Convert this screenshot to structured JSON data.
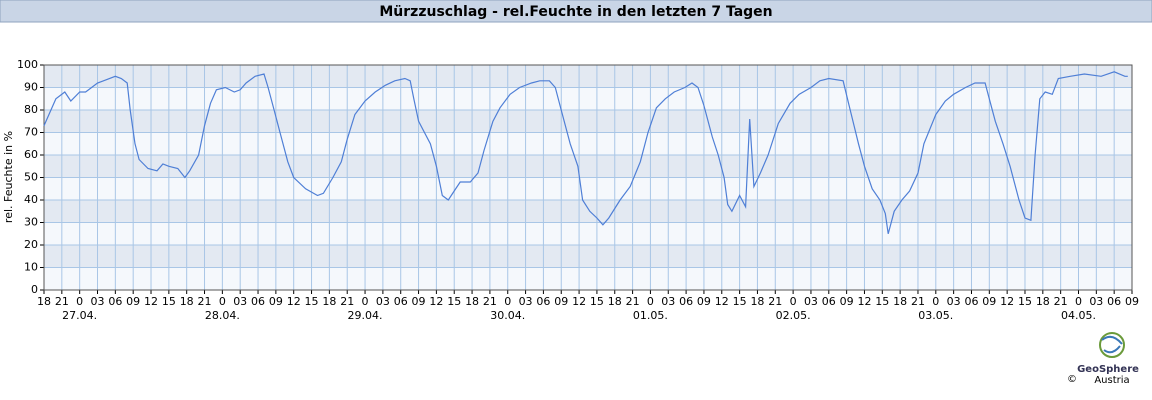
{
  "chart_data": {
    "type": "line",
    "title": "Mürzzuschlag - rel.Feuchte in den letzten 7 Tagen",
    "y_label": "rel. Feuchte in %",
    "logo": {
      "name": "GeoSphere",
      "sub": "Austria",
      "copyright": "©"
    },
    "xlim": [
      0,
      183
    ],
    "ylim": [
      0,
      100
    ],
    "yticks": [
      0,
      10,
      20,
      30,
      40,
      50,
      60,
      70,
      80,
      90,
      100
    ],
    "grid": true,
    "band_colors": [
      "#e3e9f2",
      "#f5f8fc"
    ],
    "xticks": [
      {
        "value": 0,
        "label": "18"
      },
      {
        "value": 3,
        "label": "21"
      },
      {
        "value": 6,
        "label": "0"
      },
      {
        "value": 9,
        "label": "03"
      },
      {
        "value": 12,
        "label": "06"
      },
      {
        "value": 15,
        "label": "09"
      },
      {
        "value": 18,
        "label": "12"
      },
      {
        "value": 21,
        "label": "15"
      },
      {
        "value": 24,
        "label": "18"
      },
      {
        "value": 27,
        "label": "21"
      },
      {
        "value": 30,
        "label": "0"
      },
      {
        "value": 33,
        "label": "03"
      },
      {
        "value": 36,
        "label": "06"
      },
      {
        "value": 39,
        "label": "09"
      },
      {
        "value": 42,
        "label": "12"
      },
      {
        "value": 45,
        "label": "15"
      },
      {
        "value": 48,
        "label": "18"
      },
      {
        "value": 51,
        "label": "21"
      },
      {
        "value": 54,
        "label": "0"
      },
      {
        "value": 57,
        "label": "03"
      },
      {
        "value": 60,
        "label": "06"
      },
      {
        "value": 63,
        "label": "09"
      },
      {
        "value": 66,
        "label": "12"
      },
      {
        "value": 69,
        "label": "15"
      },
      {
        "value": 72,
        "label": "18"
      },
      {
        "value": 75,
        "label": "21"
      },
      {
        "value": 78,
        "label": "0"
      },
      {
        "value": 81,
        "label": "03"
      },
      {
        "value": 84,
        "label": "06"
      },
      {
        "value": 87,
        "label": "09"
      },
      {
        "value": 90,
        "label": "12"
      },
      {
        "value": 93,
        "label": "15"
      },
      {
        "value": 96,
        "label": "18"
      },
      {
        "value": 99,
        "label": "21"
      },
      {
        "value": 102,
        "label": "0"
      },
      {
        "value": 105,
        "label": "03"
      },
      {
        "value": 108,
        "label": "06"
      },
      {
        "value": 111,
        "label": "09"
      },
      {
        "value": 114,
        "label": "12"
      },
      {
        "value": 117,
        "label": "15"
      },
      {
        "value": 120,
        "label": "18"
      },
      {
        "value": 123,
        "label": "21"
      },
      {
        "value": 126,
        "label": "0"
      },
      {
        "value": 129,
        "label": "03"
      },
      {
        "value": 132,
        "label": "06"
      },
      {
        "value": 135,
        "label": "09"
      },
      {
        "value": 138,
        "label": "12"
      },
      {
        "value": 141,
        "label": "15"
      },
      {
        "value": 144,
        "label": "18"
      },
      {
        "value": 147,
        "label": "21"
      },
      {
        "value": 150,
        "label": "0"
      },
      {
        "value": 153,
        "label": "03"
      },
      {
        "value": 156,
        "label": "06"
      },
      {
        "value": 159,
        "label": "09"
      },
      {
        "value": 162,
        "label": "12"
      },
      {
        "value": 165,
        "label": "15"
      },
      {
        "value": 168,
        "label": "18"
      },
      {
        "value": 171,
        "label": "21"
      },
      {
        "value": 174,
        "label": "0"
      },
      {
        "value": 177,
        "label": "03"
      },
      {
        "value": 180,
        "label": "06"
      },
      {
        "value": 183,
        "label": "09"
      }
    ],
    "date_labels": [
      {
        "value": 6,
        "label": "27.04."
      },
      {
        "value": 30,
        "label": "28.04."
      },
      {
        "value": 54,
        "label": "29.04."
      },
      {
        "value": 78,
        "label": "30.04."
      },
      {
        "value": 102,
        "label": "01.05."
      },
      {
        "value": 126,
        "label": "02.05."
      },
      {
        "value": 150,
        "label": "03.05."
      },
      {
        "value": 174,
        "label": "04.05."
      }
    ],
    "x": [
      0,
      2,
      3.5,
      4.5,
      6,
      7,
      8,
      9,
      10,
      12,
      13,
      14,
      14.5,
      15.3,
      16,
      17.5,
      19,
      20,
      21,
      22.5,
      23.7,
      24.5,
      26,
      27,
      28,
      29,
      30.5,
      32,
      33,
      34,
      35.5,
      37,
      37.7,
      38.7,
      39.7,
      41,
      42,
      44,
      46,
      47,
      48.6,
      50,
      51,
      52.3,
      54,
      55.7,
      57.4,
      59,
      60.7,
      61.6,
      62.2,
      63,
      65,
      66,
      67,
      68,
      69,
      70,
      71.7,
      73,
      74,
      75.5,
      76.7,
      78.4,
      80,
      82,
      83.4,
      85,
      86,
      87,
      88.5,
      89.8,
      90.6,
      91.8,
      93,
      94,
      95,
      96.9,
      98.6,
      100.3,
      101.6,
      103,
      104.5,
      106,
      107.8,
      109,
      110,
      111,
      112.4,
      113.4,
      114.4,
      115,
      115.7,
      117,
      118,
      118.7,
      119.4,
      120.5,
      121.8,
      123.5,
      125.5,
      127,
      129,
      130.5,
      132,
      134.4,
      135.6,
      137,
      138,
      139.3,
      140.6,
      141.5,
      142,
      143,
      144.3,
      145.6,
      147,
      148,
      150,
      151.6,
      153,
      155,
      156.6,
      158.3,
      159,
      160,
      161.3,
      162.5,
      164,
      165,
      166,
      166.7,
      167.5,
      168.4,
      169.6,
      170.6,
      172.6,
      175,
      177.8,
      180,
      181.8,
      182.3
    ],
    "series": [
      {
        "name": "rel. Feuchte",
        "color": "#4f7fd6",
        "values": [
          73,
          85,
          88,
          84,
          88,
          88,
          90,
          92,
          93,
          95,
          94,
          92,
          80,
          65,
          58,
          54,
          53,
          56,
          55,
          54,
          50,
          53,
          60,
          73,
          83,
          89,
          90,
          88,
          89,
          92,
          95,
          96,
          90,
          80,
          70,
          57,
          50,
          45,
          42,
          43,
          50,
          57,
          67,
          78,
          84,
          88,
          91,
          93,
          94,
          93,
          85,
          75,
          65,
          55,
          42,
          40,
          44,
          48,
          48,
          52,
          62,
          75,
          81,
          87,
          90,
          92,
          93,
          93,
          90,
          80,
          65,
          55,
          40,
          35,
          32,
          29,
          32,
          40,
          46,
          57,
          70,
          81,
          85,
          88,
          90,
          92,
          90,
          82,
          68,
          60,
          50,
          38,
          35,
          42,
          37,
          76,
          46,
          52,
          60,
          74,
          83,
          87,
          90,
          93,
          94,
          93,
          80,
          65,
          55,
          45,
          40,
          34,
          25,
          35,
          40,
          44,
          52,
          65,
          78,
          84,
          87,
          90,
          92,
          92,
          85,
          75,
          65,
          55,
          40,
          32,
          31,
          60,
          85,
          88,
          87,
          94,
          95,
          96,
          95,
          97,
          95,
          95
        ]
      }
    ]
  }
}
